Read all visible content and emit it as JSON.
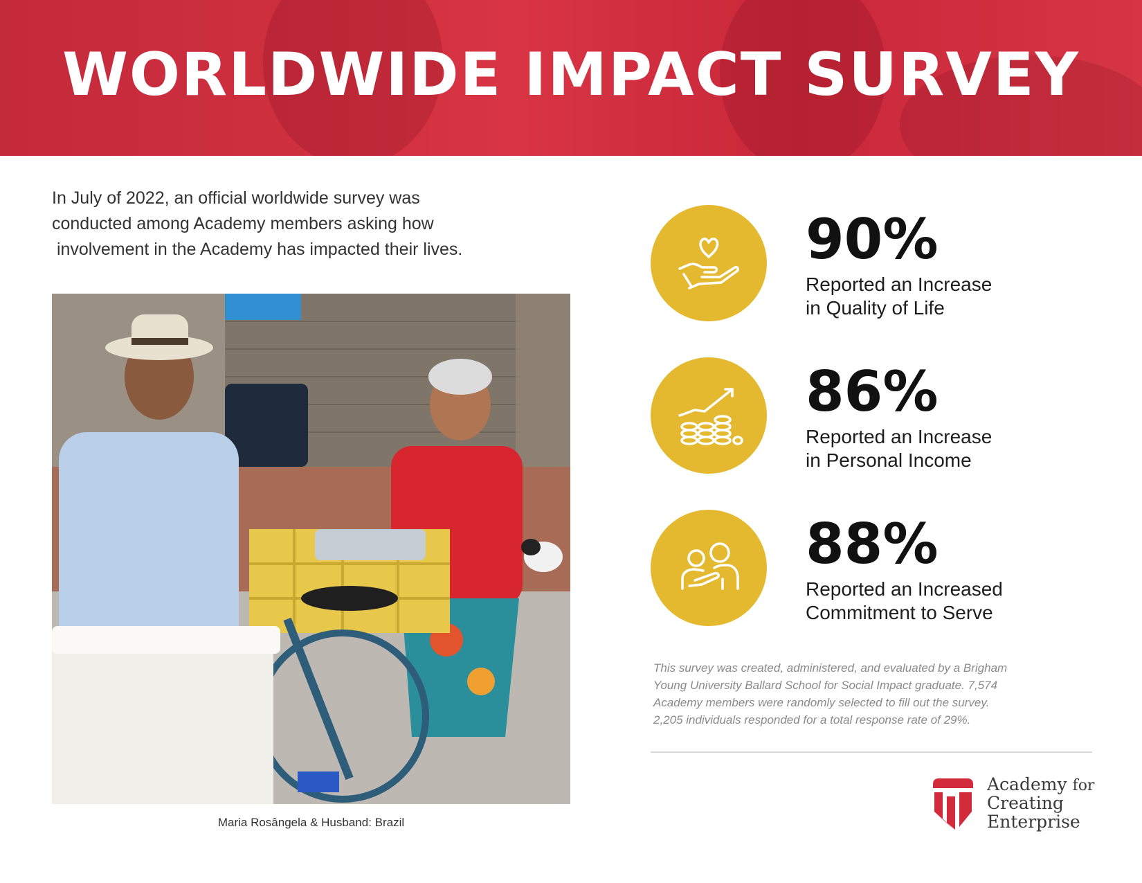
{
  "banner": {
    "title": "WORLDWIDE IMPACT SURVEY"
  },
  "intro": {
    "line1": "In July of 2022, an official worldwide survey was",
    "line2": "conducted among Academy members asking how",
    "line3": " involvement in the Academy has impacted their lives."
  },
  "photo": {
    "caption": "Maria Rosângela & Husband: Brazil"
  },
  "stats": [
    {
      "percent": "90%",
      "line1": "Reported an Increase",
      "line2": "in Quality of Life",
      "icon": "hand-heart-icon"
    },
    {
      "percent": "86%",
      "line1": "Reported an Increase",
      "line2": "in Personal Income",
      "icon": "coins-growth-icon"
    },
    {
      "percent": "88%",
      "line1": "Reported an Increased",
      "line2": "Commitment to Serve",
      "icon": "people-support-icon"
    }
  ],
  "note": {
    "line1": "This survey was created, administered, and evaluated by a Brigham",
    "line2": "Young University Ballard School for Social Impact graduate. 7,574",
    "line3": "Academy members were randomly selected to fill out the survey.",
    "line4": "2,205 individuals responded for a total response rate of 29%."
  },
  "logo": {
    "word1": "Academy",
    "word2": "for",
    "word3": "Creating",
    "word4": "Enterprise"
  },
  "colors": {
    "banner_red": "#d83444",
    "circle_gold": "#e5b92f",
    "logo_red": "#d22b3b"
  }
}
